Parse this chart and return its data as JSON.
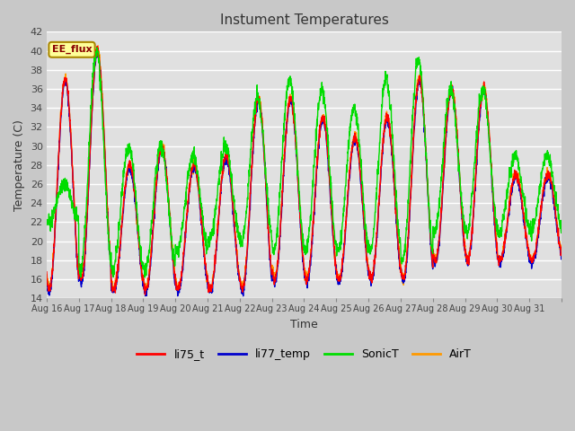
{
  "title": "Instument Temperatures",
  "xlabel": "Time",
  "ylabel": "Temperature (C)",
  "ylim": [
    14,
    42
  ],
  "yticks": [
    14,
    16,
    18,
    20,
    22,
    24,
    26,
    28,
    30,
    32,
    34,
    36,
    38,
    40,
    42
  ],
  "x_labels": [
    "Aug 16",
    "Aug 17",
    "Aug 18",
    "Aug 19",
    "Aug 20",
    "Aug 21",
    "Aug 22",
    "Aug 23",
    "Aug 24",
    "Aug 25",
    "Aug 26",
    "Aug 27",
    "Aug 28",
    "Aug 29",
    "Aug 30",
    "Aug 31"
  ],
  "legend": [
    "li75_t",
    "li77_temp",
    "SonicT",
    "AirT"
  ],
  "line_colors": [
    "#ff0000",
    "#0000cc",
    "#00dd00",
    "#ff9900"
  ],
  "annotation_text": "EE_flux",
  "annotation_bg": "#ffff99",
  "annotation_border": "#aa8800",
  "fig_bg": "#c8c8c8",
  "plot_bg": "#e0e0e0",
  "grid_color": "#ffffff",
  "figsize": [
    6.4,
    4.8
  ],
  "dpi": 100,
  "day_peaks_main": [
    37,
    40,
    28,
    30,
    28,
    29,
    35,
    35,
    33,
    31,
    33,
    37,
    36,
    36,
    27,
    27
  ],
  "day_mins_main": [
    15,
    16,
    15,
    15,
    15,
    15,
    15,
    16,
    16,
    16,
    16,
    16,
    18,
    18,
    18,
    18
  ],
  "day_peaks_sonic": [
    26,
    40,
    30,
    30,
    29,
    30,
    35,
    37,
    36,
    34,
    37,
    39,
    36,
    36,
    29,
    29
  ],
  "day_mins_sonic": [
    22,
    17,
    17,
    17,
    19,
    20,
    20,
    19,
    19,
    19,
    19,
    18,
    21,
    21,
    21,
    21
  ]
}
